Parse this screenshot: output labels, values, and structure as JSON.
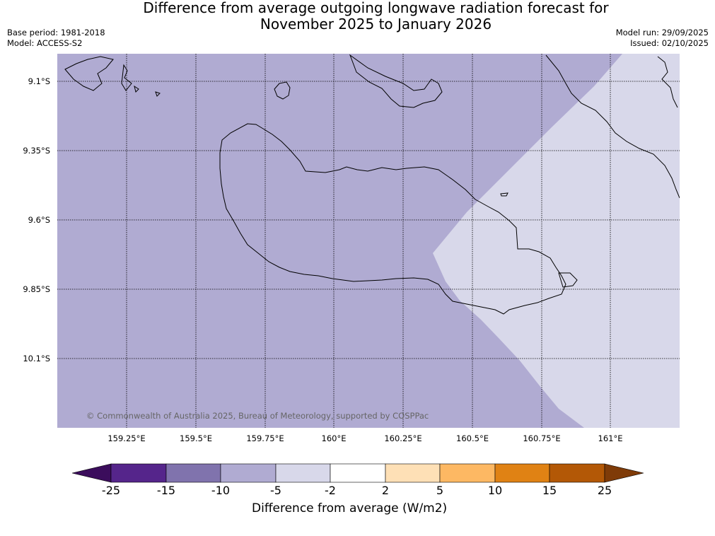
{
  "header": {
    "title_line1": "Difference from average outgoing longwave radiation forecast for",
    "title_line2": "November 2025 to January 2026",
    "base_period": "Base period: 1981-2018",
    "model": "Model: ACCESS-S2",
    "model_run": "Model run: 29/09/2025",
    "issued": "Issued: 02/10/2025"
  },
  "map": {
    "lat_ticks": [
      "9.1°S",
      "9.35°S",
      "9.6°S",
      "9.85°S",
      "10.1°S"
    ],
    "lon_ticks": [
      "159.25°E",
      "159.5°E",
      "159.75°E",
      "160°E",
      "160.25°E",
      "160.5°E",
      "160.75°E",
      "161°E"
    ],
    "copyright": "© Commonwealth of Australia 2025, Bureau of Meteorology, supported by COSPPac",
    "regions": [
      {
        "category": "-10 to -5",
        "color": "#b0abd2"
      },
      {
        "category": "-5 to -2",
        "color": "#d8d8ea"
      }
    ]
  },
  "legend": {
    "title": "Difference from average (W/m2)",
    "ticks": [
      "-25",
      "-15",
      "-10",
      "-5",
      "-2",
      "2",
      "5",
      "10",
      "15",
      "25"
    ],
    "colors": [
      "#3b0d5c",
      "#55258b",
      "#8073ad",
      "#b0abd2",
      "#d8d8ea",
      "#ffffff",
      "#fee0b6",
      "#fdb863",
      "#e08214",
      "#b35806",
      "#7f3b08"
    ]
  }
}
